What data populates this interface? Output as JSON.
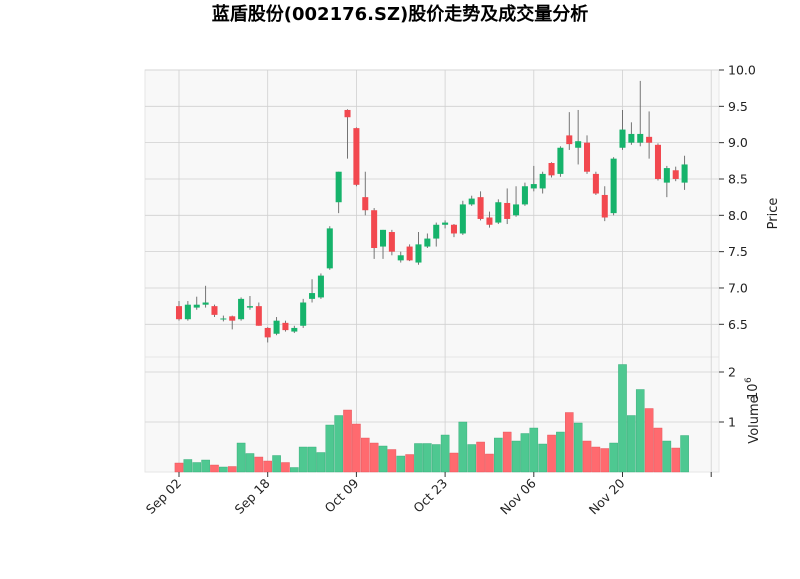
{
  "chart_data": {
    "type": "candlestick",
    "title": "蓝盾股份(002176.SZ)股价走势及成交量分析",
    "ylabel_price": "Price",
    "ylabel_volume": "Volume",
    "volume_exponent_label": "10",
    "volume_exponent_sup": "6",
    "price_ylim": [
      6.05,
      10.0
    ],
    "volume_ylim": [
      0,
      2.3
    ],
    "price_ticks": [
      "6.5",
      "7.0",
      "7.5",
      "8.0",
      "8.5",
      "9.0",
      "9.5",
      "10.0"
    ],
    "volume_ticks": [
      "1",
      "2"
    ],
    "x_ticks": [
      {
        "index": 0,
        "label": "Sep 02"
      },
      {
        "index": 10,
        "label": "Sep 18"
      },
      {
        "index": 20,
        "label": "Oct 09"
      },
      {
        "index": 30,
        "label": "Oct 23"
      },
      {
        "index": 40,
        "label": "Nov 06"
      },
      {
        "index": 50,
        "label": "Nov 20"
      },
      {
        "index": 60,
        "label": ""
      }
    ],
    "grid": true,
    "colors": {
      "up": "#16b36b",
      "down": "#f2484f",
      "volume_up": "#4ec891",
      "volume_down": "#ff6a6f",
      "panel_bg": "#f8f8f8",
      "grid": "#d0d0d0",
      "wick": "#666666"
    },
    "candles": [
      {
        "date": "Sep 02",
        "o": 6.75,
        "h": 6.82,
        "l": 6.55,
        "c": 6.57,
        "v": 0.18
      },
      {
        "date": "Sep 03",
        "o": 6.57,
        "h": 6.82,
        "l": 6.55,
        "c": 6.77,
        "v": 0.25
      },
      {
        "date": "Sep 04",
        "o": 6.73,
        "h": 6.88,
        "l": 6.7,
        "c": 6.77,
        "v": 0.19
      },
      {
        "date": "Sep 05",
        "o": 6.77,
        "h": 7.03,
        "l": 6.73,
        "c": 6.8,
        "v": 0.24
      },
      {
        "date": "Sep 06",
        "o": 6.75,
        "h": 6.77,
        "l": 6.6,
        "c": 6.63,
        "v": 0.14
      },
      {
        "date": "Sep 09",
        "o": 6.57,
        "h": 6.62,
        "l": 6.54,
        "c": 6.58,
        "v": 0.1
      },
      {
        "date": "Sep 10",
        "o": 6.61,
        "h": 6.62,
        "l": 6.43,
        "c": 6.55,
        "v": 0.11
      },
      {
        "date": "Sep 11",
        "o": 6.57,
        "h": 6.87,
        "l": 6.55,
        "c": 6.85,
        "v": 0.58
      },
      {
        "date": "Sep 12",
        "o": 6.73,
        "h": 6.89,
        "l": 6.7,
        "c": 6.75,
        "v": 0.37
      },
      {
        "date": "Sep 13",
        "o": 6.75,
        "h": 6.8,
        "l": 6.48,
        "c": 6.48,
        "v": 0.3
      },
      {
        "date": "Sep 16",
        "o": 6.45,
        "h": 6.46,
        "l": 6.25,
        "c": 6.32,
        "v": 0.22
      },
      {
        "date": "Sep 17",
        "o": 6.37,
        "h": 6.6,
        "l": 6.35,
        "c": 6.55,
        "v": 0.33
      },
      {
        "date": "Sep 18",
        "o": 6.52,
        "h": 6.55,
        "l": 6.4,
        "c": 6.42,
        "v": 0.19
      },
      {
        "date": "Sep 19",
        "o": 6.4,
        "h": 6.48,
        "l": 6.38,
        "c": 6.45,
        "v": 0.09
      },
      {
        "date": "Sep 20",
        "o": 6.48,
        "h": 6.85,
        "l": 6.45,
        "c": 6.8,
        "v": 0.5
      },
      {
        "date": "Sep 23",
        "o": 6.85,
        "h": 7.12,
        "l": 6.8,
        "c": 6.93,
        "v": 0.5
      },
      {
        "date": "Sep 24",
        "o": 6.87,
        "h": 7.2,
        "l": 6.85,
        "c": 7.17,
        "v": 0.39
      },
      {
        "date": "Sep 25",
        "o": 7.27,
        "h": 7.85,
        "l": 7.25,
        "c": 7.82,
        "v": 0.94
      },
      {
        "date": "Sep 26",
        "o": 8.18,
        "h": 8.6,
        "l": 8.03,
        "c": 8.6,
        "v": 1.13
      },
      {
        "date": "Sep 27",
        "o": 9.45,
        "h": 9.46,
        "l": 8.78,
        "c": 9.35,
        "v": 1.24
      },
      {
        "date": "Oct 08",
        "o": 9.2,
        "h": 9.21,
        "l": 8.4,
        "c": 8.42,
        "v": 0.96
      },
      {
        "date": "Oct 09",
        "o": 8.25,
        "h": 8.6,
        "l": 8.0,
        "c": 8.07,
        "v": 0.68
      },
      {
        "date": "Oct 10",
        "o": 8.07,
        "h": 8.1,
        "l": 7.4,
        "c": 7.55,
        "v": 0.58
      },
      {
        "date": "Oct 11",
        "o": 7.57,
        "h": 7.8,
        "l": 7.4,
        "c": 7.8,
        "v": 0.52
      },
      {
        "date": "Oct 14",
        "o": 7.77,
        "h": 7.8,
        "l": 7.45,
        "c": 7.5,
        "v": 0.45
      },
      {
        "date": "Oct 15",
        "o": 7.38,
        "h": 7.5,
        "l": 7.35,
        "c": 7.45,
        "v": 0.32
      },
      {
        "date": "Oct 16",
        "o": 7.57,
        "h": 7.6,
        "l": 7.37,
        "c": 7.38,
        "v": 0.35
      },
      {
        "date": "Oct 17",
        "o": 7.35,
        "h": 7.77,
        "l": 7.32,
        "c": 7.6,
        "v": 0.57
      },
      {
        "date": "Oct 18",
        "o": 7.57,
        "h": 7.75,
        "l": 7.55,
        "c": 7.68,
        "v": 0.57
      },
      {
        "date": "Oct 21",
        "o": 7.68,
        "h": 7.9,
        "l": 7.57,
        "c": 7.87,
        "v": 0.55
      },
      {
        "date": "Oct 22",
        "o": 7.87,
        "h": 7.93,
        "l": 7.82,
        "c": 7.9,
        "v": 0.74
      },
      {
        "date": "Oct 23",
        "o": 7.87,
        "h": 7.88,
        "l": 7.7,
        "c": 7.75,
        "v": 0.38
      },
      {
        "date": "Oct 24",
        "o": 7.75,
        "h": 8.2,
        "l": 7.73,
        "c": 8.15,
        "v": 1.0
      },
      {
        "date": "Oct 25",
        "o": 8.15,
        "h": 8.27,
        "l": 8.13,
        "c": 8.23,
        "v": 0.55
      },
      {
        "date": "Oct 28",
        "o": 8.25,
        "h": 8.33,
        "l": 7.93,
        "c": 7.95,
        "v": 0.6
      },
      {
        "date": "Oct 29",
        "o": 7.97,
        "h": 8.05,
        "l": 7.83,
        "c": 7.87,
        "v": 0.36
      },
      {
        "date": "Oct 30",
        "o": 7.9,
        "h": 8.22,
        "l": 7.88,
        "c": 8.18,
        "v": 0.68
      },
      {
        "date": "Oct 31",
        "o": 8.17,
        "h": 8.37,
        "l": 7.88,
        "c": 7.95,
        "v": 0.8
      },
      {
        "date": "Nov 01",
        "o": 8.0,
        "h": 8.4,
        "l": 7.98,
        "c": 8.15,
        "v": 0.62
      },
      {
        "date": "Nov 04",
        "o": 8.15,
        "h": 8.45,
        "l": 8.13,
        "c": 8.4,
        "v": 0.77
      },
      {
        "date": "Nov 05",
        "o": 8.37,
        "h": 8.68,
        "l": 8.33,
        "c": 8.43,
        "v": 0.88
      },
      {
        "date": "Nov 06",
        "o": 8.37,
        "h": 8.6,
        "l": 8.3,
        "c": 8.57,
        "v": 0.56
      },
      {
        "date": "Nov 07",
        "o": 8.72,
        "h": 8.73,
        "l": 8.52,
        "c": 8.55,
        "v": 0.74
      },
      {
        "date": "Nov 08",
        "o": 8.57,
        "h": 8.95,
        "l": 8.53,
        "c": 8.93,
        "v": 0.8
      },
      {
        "date": "Nov 11",
        "o": 9.1,
        "h": 9.42,
        "l": 8.9,
        "c": 8.98,
        "v": 1.19
      },
      {
        "date": "Nov 12",
        "o": 8.93,
        "h": 9.45,
        "l": 8.7,
        "c": 9.02,
        "v": 0.98
      },
      {
        "date": "Nov 13",
        "o": 9.0,
        "h": 9.1,
        "l": 8.57,
        "c": 8.6,
        "v": 0.62
      },
      {
        "date": "Nov 14",
        "o": 8.57,
        "h": 8.6,
        "l": 8.28,
        "c": 8.3,
        "v": 0.5
      },
      {
        "date": "Nov 15",
        "o": 8.28,
        "h": 8.4,
        "l": 7.92,
        "c": 7.97,
        "v": 0.47
      },
      {
        "date": "Nov 18",
        "o": 8.03,
        "h": 8.8,
        "l": 8.0,
        "c": 8.78,
        "v": 0.58
      },
      {
        "date": "Nov 19",
        "o": 8.93,
        "h": 9.45,
        "l": 8.9,
        "c": 9.18,
        "v": 2.15
      },
      {
        "date": "Nov 20",
        "o": 9.0,
        "h": 9.28,
        "l": 8.97,
        "c": 9.12,
        "v": 1.13
      },
      {
        "date": "Nov 21",
        "o": 9.0,
        "h": 9.85,
        "l": 8.95,
        "c": 9.12,
        "v": 1.65
      },
      {
        "date": "Nov 22",
        "o": 9.08,
        "h": 9.43,
        "l": 8.78,
        "c": 9.0,
        "v": 1.27
      },
      {
        "date": "Nov 25",
        "o": 8.97,
        "h": 8.99,
        "l": 8.48,
        "c": 8.5,
        "v": 0.88
      },
      {
        "date": "Nov 26",
        "o": 8.45,
        "h": 8.68,
        "l": 8.25,
        "c": 8.65,
        "v": 0.62
      },
      {
        "date": "Nov 27",
        "o": 8.62,
        "h": 8.67,
        "l": 8.47,
        "c": 8.5,
        "v": 0.48
      },
      {
        "date": "Nov 28",
        "o": 8.45,
        "h": 8.82,
        "l": 8.35,
        "c": 8.7,
        "v": 0.73
      }
    ]
  }
}
